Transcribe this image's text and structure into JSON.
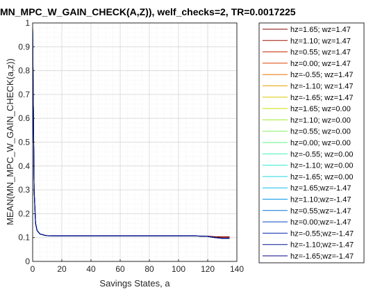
{
  "chart_data": {
    "type": "line",
    "title": "MN_MPC_W_GAIN_CHECK(A,Z)), welf_checks=2, TR=0.0017225",
    "xlabel": "Savings States, a",
    "ylabel": "MEAN(MN_MPC_W_GAIN_CHECK(a,z))",
    "xlim": [
      0,
      140
    ],
    "ylim": [
      0,
      1
    ],
    "xticks": [
      "0",
      "20",
      "40",
      "60",
      "80",
      "100",
      "120",
      "140"
    ],
    "yticks": [
      "0",
      "0.1",
      "0.2",
      "0.3",
      "0.4",
      "0.5",
      "0.6",
      "0.7",
      "0.8",
      "0.9",
      "1"
    ],
    "grid": true,
    "legend_position": "right",
    "x": [
      0,
      1,
      2,
      3,
      5,
      8,
      10,
      15,
      20,
      25,
      30,
      40,
      50,
      60,
      70,
      80,
      90,
      100,
      110,
      120,
      125,
      130,
      135
    ],
    "series": [
      {
        "name": "hz=1.65; wz=1.47",
        "color": "#800000",
        "values": [
          0.98,
          0.3,
          0.16,
          0.13,
          0.115,
          0.11,
          0.108,
          0.107,
          0.107,
          0.107,
          0.107,
          0.107,
          0.107,
          0.107,
          0.107,
          0.107,
          0.107,
          0.107,
          0.107,
          0.106,
          0.104,
          0.103,
          0.103
        ]
      },
      {
        "name": "hz=1.10; wz=1.47",
        "color": "#a01000",
        "values": [
          0.98,
          0.3,
          0.16,
          0.13,
          0.115,
          0.11,
          0.108,
          0.107,
          0.107,
          0.107,
          0.107,
          0.107,
          0.107,
          0.107,
          0.107,
          0.107,
          0.107,
          0.107,
          0.107,
          0.105,
          0.102,
          0.1,
          0.1
        ]
      },
      {
        "name": "hz=0.55; wz=1.47",
        "color": "#c02800",
        "values": [
          0.98,
          0.3,
          0.16,
          0.13,
          0.115,
          0.11,
          0.108,
          0.107,
          0.107,
          0.107,
          0.107,
          0.107,
          0.107,
          0.107,
          0.107,
          0.107,
          0.107,
          0.107,
          0.107,
          0.105,
          0.1,
          0.098,
          0.098
        ]
      },
      {
        "name": "hz=0.00; wz=1.47",
        "color": "#e04000",
        "values": [
          0.98,
          0.3,
          0.16,
          0.13,
          0.115,
          0.11,
          0.108,
          0.107,
          0.107,
          0.107,
          0.107,
          0.107,
          0.107,
          0.107,
          0.107,
          0.107,
          0.107,
          0.107,
          0.107,
          0.105,
          0.1,
          0.097,
          0.097
        ]
      },
      {
        "name": "hz=-0.55; wz=1.47",
        "color": "#ee7000",
        "values": [
          0.98,
          0.3,
          0.16,
          0.13,
          0.115,
          0.11,
          0.108,
          0.107,
          0.107,
          0.107,
          0.107,
          0.107,
          0.107,
          0.107,
          0.107,
          0.107,
          0.107,
          0.107,
          0.107,
          0.105,
          0.1,
          0.097,
          0.097
        ]
      },
      {
        "name": "hz=-1.10; wz=1.47",
        "color": "#e8a000",
        "values": [
          0.98,
          0.3,
          0.16,
          0.13,
          0.115,
          0.11,
          0.108,
          0.107,
          0.107,
          0.107,
          0.107,
          0.107,
          0.107,
          0.107,
          0.107,
          0.107,
          0.107,
          0.107,
          0.107,
          0.105,
          0.1,
          0.097,
          0.097
        ]
      },
      {
        "name": "hz=-1.65; wz=1.47",
        "color": "#e0c800",
        "values": [
          0.98,
          0.3,
          0.16,
          0.13,
          0.115,
          0.11,
          0.108,
          0.107,
          0.107,
          0.107,
          0.107,
          0.107,
          0.107,
          0.107,
          0.107,
          0.107,
          0.107,
          0.107,
          0.107,
          0.105,
          0.1,
          0.097,
          0.097
        ]
      },
      {
        "name": "hz=1.65; wz=0.00",
        "color": "#c8e000",
        "values": [
          0.98,
          0.3,
          0.16,
          0.13,
          0.115,
          0.11,
          0.108,
          0.107,
          0.107,
          0.107,
          0.107,
          0.107,
          0.107,
          0.107,
          0.107,
          0.107,
          0.107,
          0.107,
          0.107,
          0.105,
          0.1,
          0.097,
          0.097
        ]
      },
      {
        "name": "hz=1.10; wz=0.00",
        "color": "#a0e830",
        "values": [
          0.98,
          0.3,
          0.16,
          0.13,
          0.115,
          0.11,
          0.108,
          0.107,
          0.107,
          0.107,
          0.107,
          0.107,
          0.107,
          0.107,
          0.107,
          0.107,
          0.107,
          0.107,
          0.107,
          0.105,
          0.1,
          0.097,
          0.097
        ]
      },
      {
        "name": "hz=0.55; wz=0.00",
        "color": "#80ee60",
        "values": [
          0.98,
          0.3,
          0.16,
          0.13,
          0.115,
          0.11,
          0.108,
          0.107,
          0.107,
          0.107,
          0.107,
          0.107,
          0.107,
          0.107,
          0.107,
          0.107,
          0.107,
          0.107,
          0.107,
          0.105,
          0.1,
          0.097,
          0.097
        ]
      },
      {
        "name": "hz=0.00; wz=0.00",
        "color": "#60f080",
        "values": [
          0.98,
          0.3,
          0.16,
          0.13,
          0.115,
          0.11,
          0.108,
          0.107,
          0.107,
          0.107,
          0.107,
          0.107,
          0.107,
          0.107,
          0.107,
          0.107,
          0.107,
          0.107,
          0.107,
          0.105,
          0.1,
          0.097,
          0.097
        ]
      },
      {
        "name": "hz=-0.55; wz=0.00",
        "color": "#40f0b0",
        "values": [
          0.98,
          0.3,
          0.16,
          0.13,
          0.115,
          0.11,
          0.108,
          0.107,
          0.107,
          0.107,
          0.107,
          0.107,
          0.107,
          0.107,
          0.107,
          0.107,
          0.107,
          0.107,
          0.107,
          0.105,
          0.1,
          0.097,
          0.097
        ]
      },
      {
        "name": "hz=-1.10; wz=0.00",
        "color": "#30e8d0",
        "values": [
          0.98,
          0.3,
          0.16,
          0.13,
          0.115,
          0.11,
          0.108,
          0.107,
          0.107,
          0.107,
          0.107,
          0.107,
          0.107,
          0.107,
          0.107,
          0.107,
          0.107,
          0.107,
          0.107,
          0.105,
          0.1,
          0.097,
          0.097
        ]
      },
      {
        "name": "hz=-1.65; wz=0.00",
        "color": "#20d8e8",
        "values": [
          0.98,
          0.3,
          0.16,
          0.13,
          0.115,
          0.11,
          0.108,
          0.107,
          0.107,
          0.107,
          0.107,
          0.107,
          0.107,
          0.107,
          0.107,
          0.107,
          0.107,
          0.107,
          0.107,
          0.105,
          0.1,
          0.097,
          0.097
        ]
      },
      {
        "name": "hz=1.65;wz=-1.47",
        "color": "#10c0f0",
        "values": [
          0.98,
          0.3,
          0.16,
          0.13,
          0.115,
          0.11,
          0.108,
          0.107,
          0.107,
          0.107,
          0.107,
          0.107,
          0.107,
          0.107,
          0.107,
          0.107,
          0.107,
          0.107,
          0.107,
          0.105,
          0.1,
          0.097,
          0.097
        ]
      },
      {
        "name": "hz=1.10;wz=-1.47",
        "color": "#0098e8",
        "values": [
          0.98,
          0.3,
          0.16,
          0.13,
          0.115,
          0.11,
          0.108,
          0.107,
          0.107,
          0.107,
          0.107,
          0.107,
          0.107,
          0.107,
          0.107,
          0.107,
          0.107,
          0.107,
          0.107,
          0.105,
          0.1,
          0.097,
          0.097
        ]
      },
      {
        "name": "hz=0.55;wz=-1.47",
        "color": "#0070d8",
        "values": [
          0.98,
          0.3,
          0.16,
          0.13,
          0.115,
          0.11,
          0.108,
          0.107,
          0.107,
          0.107,
          0.107,
          0.107,
          0.107,
          0.107,
          0.107,
          0.107,
          0.107,
          0.107,
          0.107,
          0.105,
          0.1,
          0.097,
          0.097
        ]
      },
      {
        "name": "hz=0.00;wz=-1.47",
        "color": "#0048c0",
        "values": [
          0.98,
          0.3,
          0.16,
          0.13,
          0.115,
          0.11,
          0.108,
          0.107,
          0.107,
          0.107,
          0.107,
          0.107,
          0.107,
          0.107,
          0.107,
          0.107,
          0.107,
          0.107,
          0.107,
          0.105,
          0.1,
          0.097,
          0.097
        ]
      },
      {
        "name": "hz=-0.55;wz=-1.47",
        "color": "#0028a8",
        "values": [
          0.98,
          0.3,
          0.16,
          0.13,
          0.115,
          0.11,
          0.108,
          0.107,
          0.107,
          0.107,
          0.107,
          0.107,
          0.107,
          0.107,
          0.107,
          0.107,
          0.107,
          0.107,
          0.107,
          0.105,
          0.1,
          0.097,
          0.097
        ]
      },
      {
        "name": "hz=-1.10;wz=-1.47",
        "color": "#001090",
        "values": [
          0.98,
          0.3,
          0.16,
          0.13,
          0.115,
          0.11,
          0.108,
          0.107,
          0.107,
          0.107,
          0.107,
          0.107,
          0.107,
          0.107,
          0.107,
          0.107,
          0.107,
          0.107,
          0.107,
          0.105,
          0.1,
          0.097,
          0.097
        ]
      },
      {
        "name": "hz=-1.65;wz=-1.47",
        "color": "#000080",
        "values": [
          0.98,
          0.3,
          0.16,
          0.13,
          0.115,
          0.11,
          0.108,
          0.107,
          0.107,
          0.107,
          0.107,
          0.107,
          0.107,
          0.107,
          0.107,
          0.107,
          0.107,
          0.107,
          0.107,
          0.105,
          0.1,
          0.097,
          0.097
        ]
      }
    ]
  }
}
